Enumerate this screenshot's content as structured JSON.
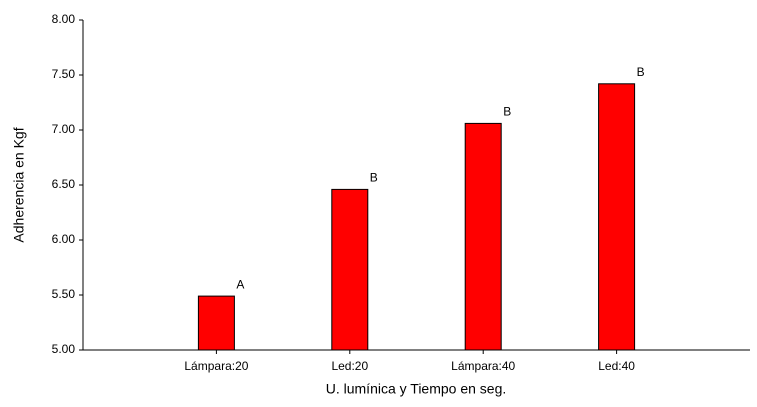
{
  "chart_data": {
    "type": "bar",
    "x_label": "U. lumínica y Tiempo en seg.",
    "y_label": "Adherencia en Kgf",
    "categories": [
      "Lámpara:20",
      "Led:20",
      "Lámpara:40",
      "Led:40"
    ],
    "values": [
      5.49,
      6.46,
      7.06,
      7.42
    ],
    "bar_labels": [
      "A",
      "B",
      "B",
      "B"
    ],
    "color": "#ff0000",
    "ylim": [
      5,
      8
    ],
    "yticks": [
      {
        "value": 5,
        "label": "5.00"
      },
      {
        "value": 5.5,
        "label": "5.50"
      },
      {
        "value": 6,
        "label": "6.00"
      },
      {
        "value": 6.5,
        "label": "6.50"
      },
      {
        "value": 7,
        "label": "7.00"
      },
      {
        "value": 7.5,
        "label": "7.50"
      },
      {
        "value": 8,
        "label": "8.00"
      }
    ],
    "grid": false
  }
}
